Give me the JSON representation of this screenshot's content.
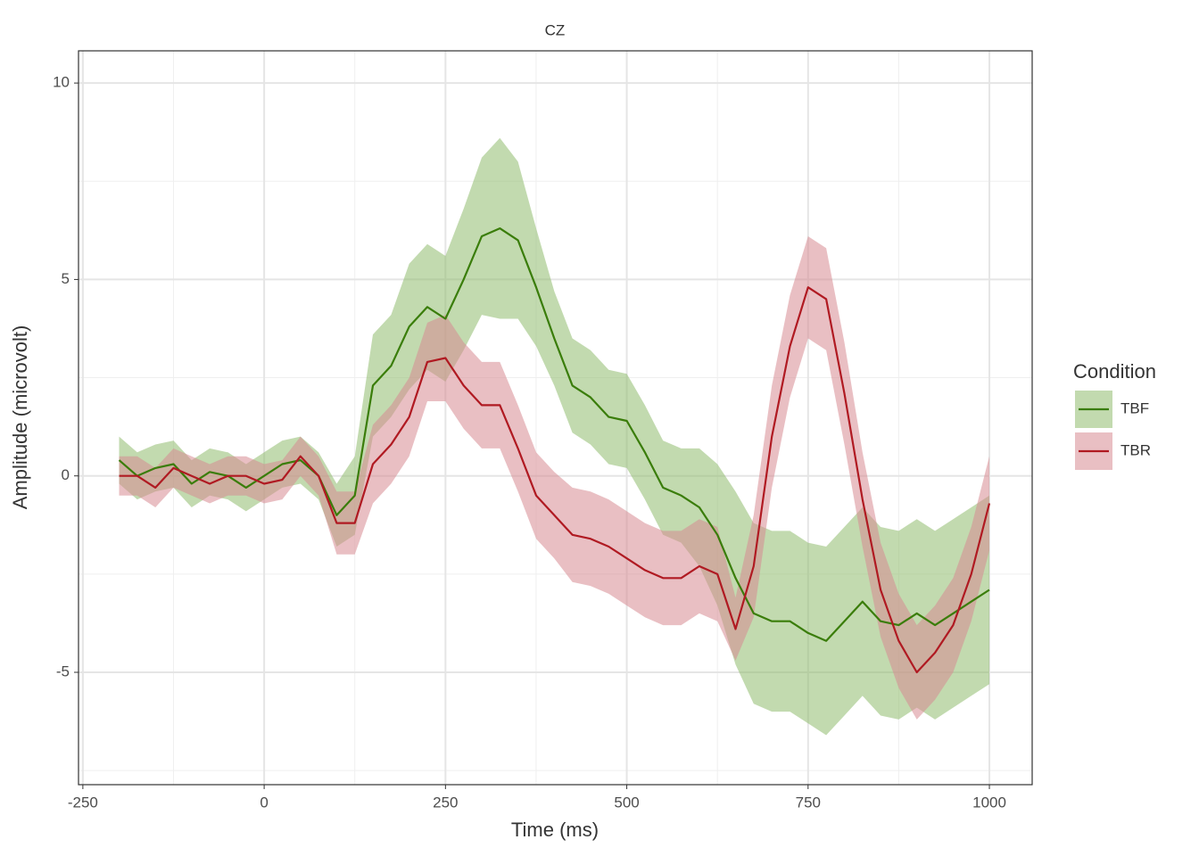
{
  "chart_data": {
    "type": "line",
    "title": "CZ",
    "x_label": "Time (ms)",
    "y_label": "Amplitude (microvolt)",
    "legend_title": "Condition",
    "xlim": [
      -256,
      1059
    ],
    "ylim": [
      -7.86,
      10.82
    ],
    "xticks": [
      -250,
      0,
      250,
      500,
      750,
      1000
    ],
    "yticks": [
      -5,
      0,
      5,
      10
    ],
    "grid": true,
    "x": [
      -200,
      -175,
      -150,
      -125,
      -100,
      -75,
      -50,
      -25,
      0,
      25,
      50,
      75,
      100,
      125,
      150,
      175,
      200,
      225,
      250,
      275,
      300,
      325,
      350,
      375,
      400,
      425,
      450,
      475,
      500,
      525,
      550,
      575,
      600,
      625,
      650,
      675,
      700,
      725,
      750,
      775,
      800,
      825,
      850,
      875,
      900,
      925,
      950,
      975,
      1000
    ],
    "series": [
      {
        "name": "TBF",
        "color": "#3a7d0a",
        "fill": "#8fbc6e",
        "values": [
          0.4,
          0.0,
          0.2,
          0.3,
          -0.2,
          0.1,
          0.0,
          -0.3,
          0.0,
          0.3,
          0.4,
          0.0,
          -1.0,
          -0.5,
          2.3,
          2.8,
          3.8,
          4.3,
          4.0,
          5.0,
          6.1,
          6.3,
          6.0,
          4.8,
          3.5,
          2.3,
          2.0,
          1.5,
          1.4,
          0.6,
          -0.3,
          -0.5,
          -0.8,
          -1.5,
          -2.6,
          -3.5,
          -3.7,
          -3.7,
          -4.0,
          -4.2,
          -3.7,
          -3.2,
          -3.7,
          -3.8,
          -3.5,
          -3.8,
          -3.5,
          -3.2,
          -2.9
        ],
        "error": [
          0.6,
          0.6,
          0.6,
          0.6,
          0.6,
          0.6,
          0.6,
          0.6,
          0.6,
          0.6,
          0.6,
          0.6,
          0.8,
          1.0,
          1.3,
          1.3,
          1.6,
          1.6,
          1.6,
          1.8,
          2.0,
          2.3,
          2.0,
          1.5,
          1.2,
          1.2,
          1.2,
          1.2,
          1.2,
          1.2,
          1.2,
          1.2,
          1.5,
          1.8,
          2.2,
          2.3,
          2.3,
          2.3,
          2.3,
          2.4,
          2.4,
          2.4,
          2.4,
          2.4,
          2.4,
          2.4,
          2.4,
          2.4,
          2.4
        ]
      },
      {
        "name": "TBR",
        "color": "#b01a22",
        "fill": "#d78a92",
        "values": [
          0.0,
          0.0,
          -0.3,
          0.2,
          0.0,
          -0.2,
          0.0,
          0.0,
          -0.2,
          -0.1,
          0.5,
          0.0,
          -1.2,
          -1.2,
          0.3,
          0.8,
          1.5,
          2.9,
          3.0,
          2.3,
          1.8,
          1.8,
          0.7,
          -0.5,
          -1.0,
          -1.5,
          -1.6,
          -1.8,
          -2.1,
          -2.4,
          -2.6,
          -2.6,
          -2.3,
          -2.5,
          -3.9,
          -2.3,
          1.0,
          3.3,
          4.8,
          4.5,
          2.1,
          -0.6,
          -2.9,
          -4.2,
          -5.0,
          -4.5,
          -3.8,
          -2.5,
          -0.7
        ],
        "error": [
          0.5,
          0.5,
          0.5,
          0.5,
          0.5,
          0.5,
          0.5,
          0.5,
          0.5,
          0.5,
          0.5,
          0.5,
          0.8,
          0.8,
          1.0,
          1.0,
          1.0,
          1.0,
          1.1,
          1.1,
          1.1,
          1.1,
          1.1,
          1.1,
          1.1,
          1.2,
          1.2,
          1.2,
          1.2,
          1.2,
          1.2,
          1.2,
          1.2,
          1.2,
          0.8,
          1.3,
          1.3,
          1.3,
          1.3,
          1.3,
          1.3,
          1.2,
          1.2,
          1.2,
          1.2,
          1.2,
          1.2,
          1.2,
          1.2
        ]
      }
    ]
  }
}
